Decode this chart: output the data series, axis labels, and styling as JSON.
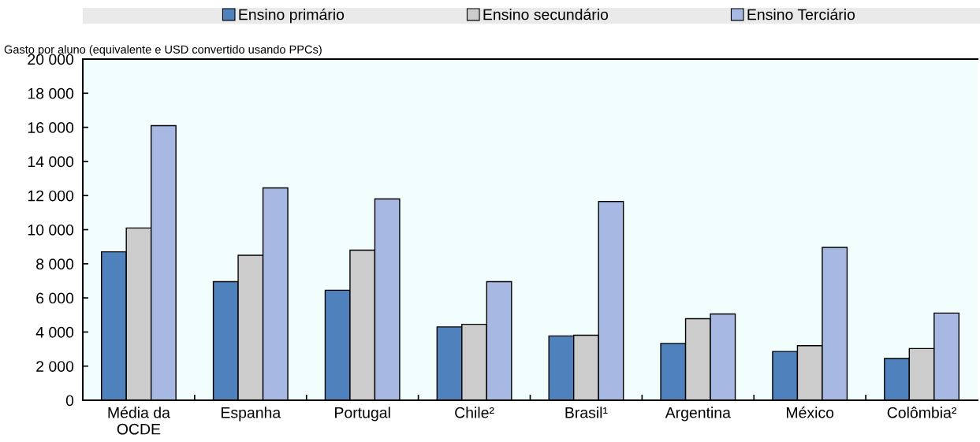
{
  "chart_data": {
    "type": "bar",
    "ylabel": "Gasto por aluno (equivalente e USD convertido usando PPCs)",
    "categories": [
      "Média da\nOCDE",
      "Espanha",
      "Portugal",
      "Chile²",
      "Brasil¹",
      "Argentina",
      "México",
      "Colômbia²"
    ],
    "series": [
      {
        "name": "Ensino primário",
        "color": "#4f81bd",
        "values": [
          8700,
          6950,
          6450,
          4300,
          3770,
          3330,
          2860,
          2450
        ]
      },
      {
        "name": "Ensino secundário",
        "color": "#cccccc",
        "values": [
          10100,
          8500,
          8800,
          4450,
          3810,
          4780,
          3200,
          3030
        ]
      },
      {
        "name": "Ensino Terciário",
        "color": "#a7b8e2",
        "values": [
          16100,
          12450,
          11800,
          6950,
          11650,
          5060,
          8960,
          5110
        ]
      }
    ],
    "ylim": [
      0,
      20000
    ],
    "yticks": [
      {
        "value": 0,
        "label": "0"
      },
      {
        "value": 2000,
        "label": "2 000"
      },
      {
        "value": 4000,
        "label": "4 000"
      },
      {
        "value": 6000,
        "label": "6 000"
      },
      {
        "value": 8000,
        "label": "8 000"
      },
      {
        "value": 10000,
        "label": "10 000"
      },
      {
        "value": 12000,
        "label": "12 000"
      },
      {
        "value": 14000,
        "label": "14 000"
      },
      {
        "value": 16000,
        "label": "16 000"
      },
      {
        "value": 18000,
        "label": "18 000"
      },
      {
        "value": 20000,
        "label": "20 000"
      }
    ],
    "grid": false,
    "legend": "top"
  }
}
